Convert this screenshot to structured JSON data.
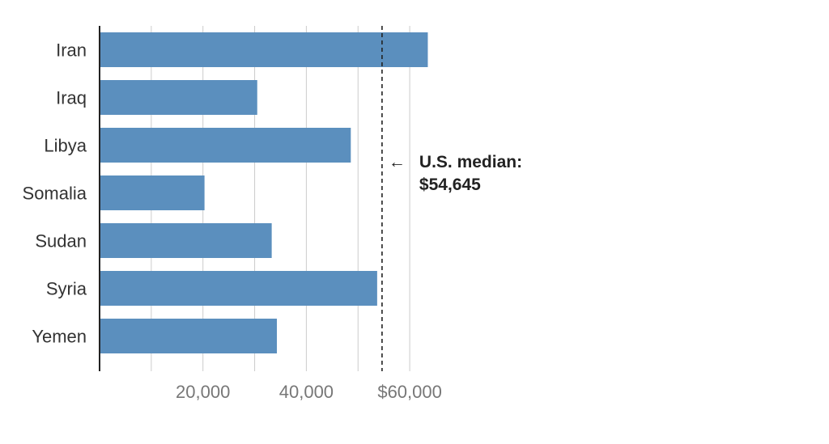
{
  "chart_data": {
    "type": "bar",
    "orientation": "horizontal",
    "categories": [
      "Iran",
      "Iraq",
      "Libya",
      "Somalia",
      "Sudan",
      "Syria",
      "Yemen"
    ],
    "values": [
      63500,
      30500,
      48600,
      20300,
      33300,
      53700,
      34300
    ],
    "xlim": [
      0,
      70000
    ],
    "x_ticks": [
      {
        "value": 20000,
        "label": "20,000"
      },
      {
        "value": 40000,
        "label": "40,000"
      },
      {
        "value": 60000,
        "label": "$60,000"
      }
    ],
    "gridlines": [
      10000,
      20000,
      30000,
      40000,
      50000,
      60000
    ],
    "grid": true,
    "title": "",
    "xlabel": "",
    "ylabel": "",
    "bar_color": "#5b8fbe",
    "reference_line": {
      "value": 54645,
      "style": "dashed",
      "label_line1": "U.S. median:",
      "label_line2": "$54,645",
      "arrow": "←"
    }
  }
}
